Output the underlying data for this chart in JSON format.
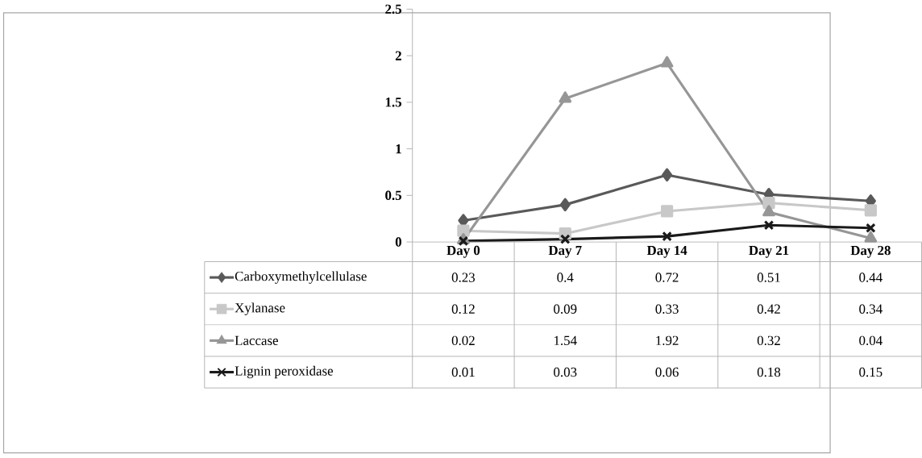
{
  "chart_data": {
    "type": "line",
    "categories": [
      "Day 0",
      "Day 7",
      "Day 14",
      "Day 21",
      "Day 28"
    ],
    "series": [
      {
        "name": "Carboxymethylcellulase",
        "color": "#595959",
        "marker": "diamond",
        "values": [
          0.23,
          0.4,
          0.72,
          0.51,
          0.44
        ]
      },
      {
        "name": "Xylanase",
        "color": "#c8c8c8",
        "marker": "square",
        "values": [
          0.12,
          0.09,
          0.33,
          0.42,
          0.34
        ]
      },
      {
        "name": "Laccase",
        "color": "#969696",
        "marker": "triangle",
        "values": [
          0.02,
          1.54,
          1.92,
          0.32,
          0.04
        ]
      },
      {
        "name": "Lignin peroxidase",
        "color": "#1a1a1a",
        "marker": "cross",
        "values": [
          0.01,
          0.03,
          0.06,
          0.18,
          0.15
        ]
      }
    ],
    "ylim": [
      0,
      2.5
    ],
    "yticks": [
      0,
      0.5,
      1,
      1.5,
      2,
      2.5
    ],
    "grid": false,
    "legend": "bottom",
    "data_labels": true
  }
}
